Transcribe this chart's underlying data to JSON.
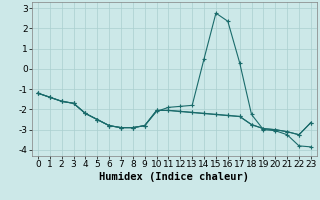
{
  "xlabel": "Humidex (Indice chaleur)",
  "background_color": "#cce8e8",
  "grid_color": "#aacfcf",
  "line_color": "#1a6b6b",
  "x": [
    0,
    1,
    2,
    3,
    4,
    5,
    6,
    7,
    8,
    9,
    10,
    11,
    12,
    13,
    14,
    15,
    16,
    17,
    18,
    19,
    20,
    21,
    22,
    23
  ],
  "line0": [
    -1.2,
    -1.4,
    -1.6,
    -1.7,
    -2.2,
    -2.5,
    -2.8,
    -2.9,
    -2.9,
    -2.8,
    -2.1,
    -1.9,
    -1.85,
    -1.8,
    0.5,
    2.75,
    2.35,
    0.3,
    -2.25,
    -3.0,
    -3.05,
    -3.25,
    -3.8,
    -3.85
  ],
  "line1": [
    -1.2,
    -1.4,
    -1.6,
    -1.7,
    -2.2,
    -2.5,
    -2.8,
    -2.9,
    -2.9,
    -2.8,
    -2.05,
    -2.05,
    -2.1,
    -2.15,
    -2.2,
    -2.25,
    -2.3,
    -2.35,
    -2.75,
    -2.95,
    -3.0,
    -3.1,
    -3.25,
    -2.65
  ],
  "line2": [
    -1.2,
    -1.4,
    -1.6,
    -1.7,
    -2.2,
    -2.5,
    -2.8,
    -2.9,
    -2.9,
    -2.8,
    -2.05,
    -2.05,
    -2.1,
    -2.15,
    -2.2,
    -2.25,
    -2.3,
    -2.35,
    -2.75,
    -2.95,
    -3.0,
    -3.1,
    -3.25,
    -2.65
  ],
  "xlim": [
    -0.5,
    23.5
  ],
  "ylim": [
    -4.3,
    3.3
  ],
  "yticks": [
    -4,
    -3,
    -2,
    -1,
    0,
    1,
    2,
    3
  ],
  "xticks": [
    0,
    1,
    2,
    3,
    4,
    5,
    6,
    7,
    8,
    9,
    10,
    11,
    12,
    13,
    14,
    15,
    16,
    17,
    18,
    19,
    20,
    21,
    22,
    23
  ],
  "xlabel_fontsize": 7.5,
  "tick_fontsize": 6.5,
  "marker_size": 2.5,
  "line_width": 0.8
}
